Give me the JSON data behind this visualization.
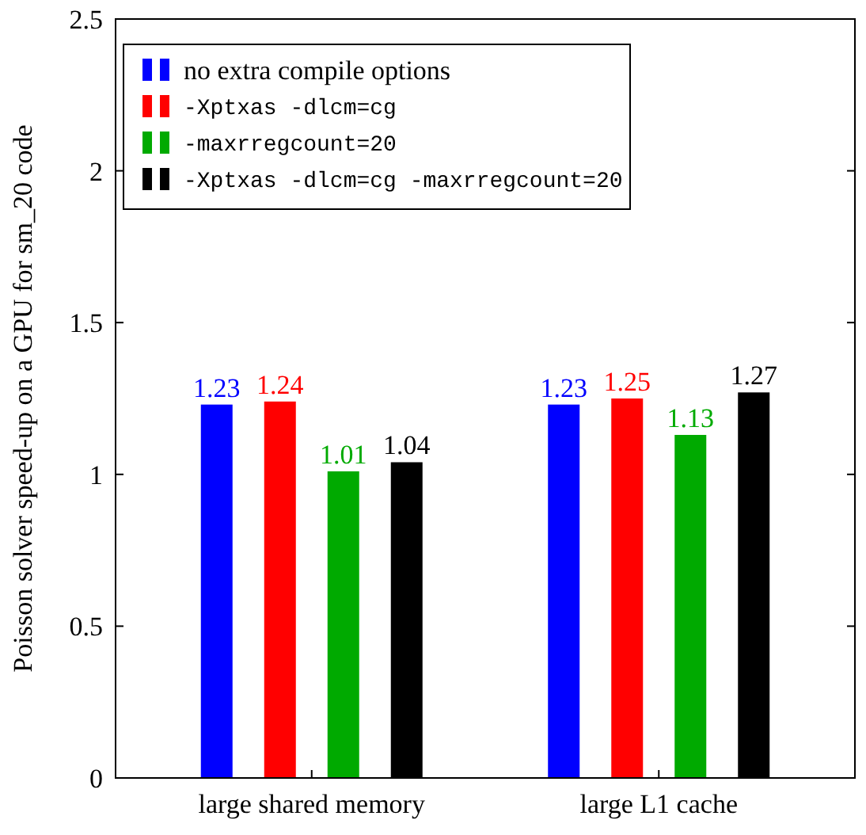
{
  "chart_data": {
    "type": "bar",
    "ylabel": "Poisson solver speed-up on a GPU for sm_20 code",
    "categories": [
      "large shared memory",
      "large L1 cache"
    ],
    "series": [
      {
        "name": "no extra compile options",
        "color": "#0000ff",
        "values": [
          1.23,
          1.23
        ]
      },
      {
        "name": "-Xptxas -dlcm=cg",
        "color": "#ff0000",
        "values": [
          1.24,
          1.25
        ]
      },
      {
        "name": "-maxrregcount=20",
        "color": "#00aa00",
        "values": [
          1.01,
          1.13
        ]
      },
      {
        "name": "-Xptxas -dlcm=cg -maxrregcount=20",
        "color": "#000000",
        "values": [
          1.04,
          1.27
        ]
      }
    ],
    "ylim": [
      0,
      2.5
    ],
    "yticks": [
      0,
      0.5,
      1,
      1.5,
      2,
      2.5
    ],
    "data_labels": true,
    "legend": "top left",
    "grid": false
  }
}
